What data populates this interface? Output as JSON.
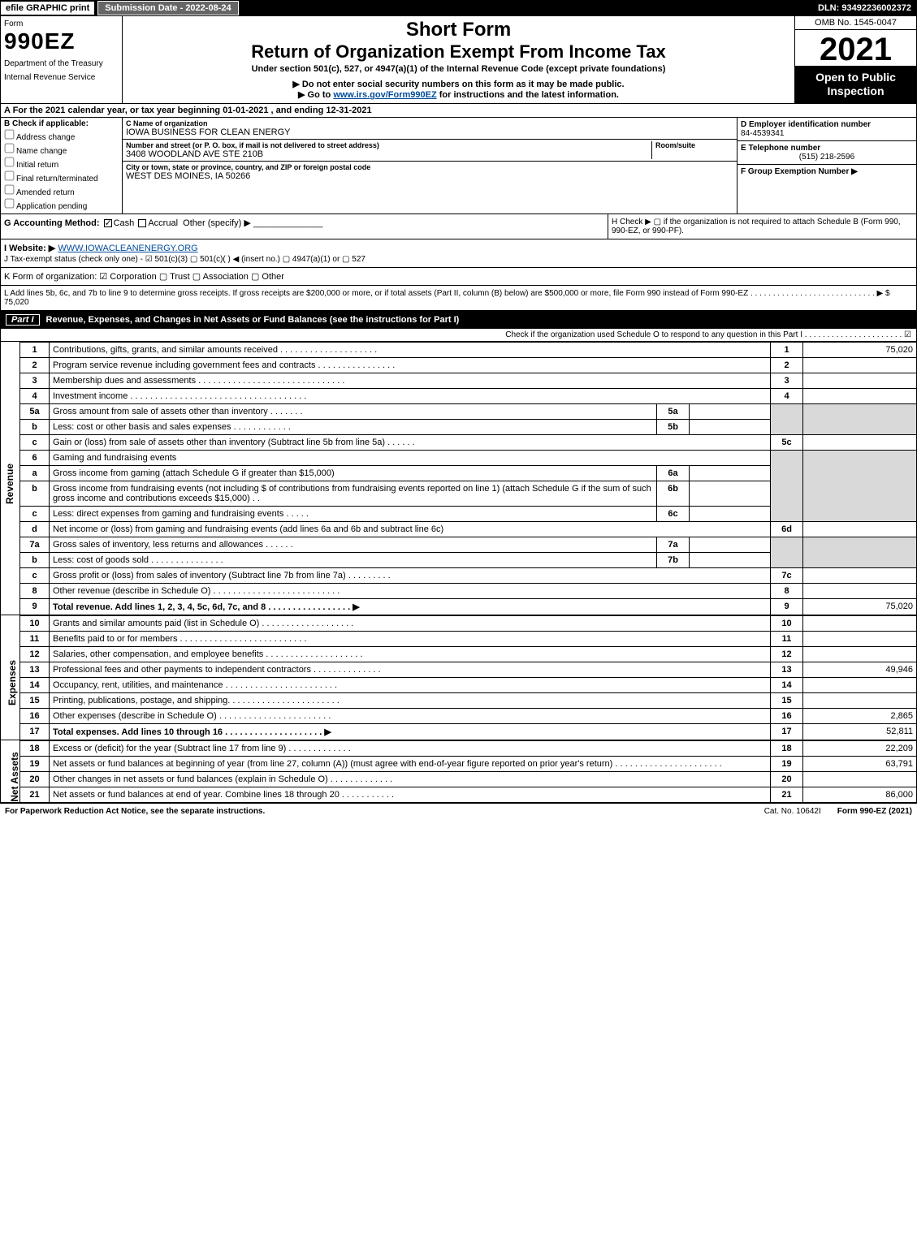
{
  "topbar": {
    "efile": "efile GRAPHIC print",
    "submission": "Submission Date - 2022-08-24",
    "dln": "DLN: 93492236002372"
  },
  "header": {
    "form_label": "Form",
    "form_number": "990EZ",
    "dept_line1": "Department of the Treasury",
    "dept_line2": "Internal Revenue Service",
    "short": "Short Form",
    "title": "Return of Organization Exempt From Income Tax",
    "subtitle": "Under section 501(c), 527, or 4947(a)(1) of the Internal Revenue Code (except private foundations)",
    "note_ssn": "▶ Do not enter social security numbers on this form as it may be made public.",
    "note_link_prefix": "▶ Go to ",
    "note_link": "www.irs.gov/Form990EZ",
    "note_link_suffix": " for instructions and the latest information.",
    "omb": "OMB No. 1545-0047",
    "year": "2021",
    "open": "Open to Public Inspection"
  },
  "section_a": "A  For the 2021 calendar year, or tax year beginning 01-01-2021 , and ending 12-31-2021",
  "section_b": {
    "label": "B  Check if applicable:",
    "opts": [
      "Address change",
      "Name change",
      "Initial return",
      "Final return/terminated",
      "Amended return",
      "Application pending"
    ]
  },
  "section_c": {
    "name_label": "C Name of organization",
    "name": "IOWA BUSINESS FOR CLEAN ENERGY",
    "street_label": "Number and street (or P. O. box, if mail is not delivered to street address)",
    "room_label": "Room/suite",
    "street": "3408 WOODLAND AVE STE 210B",
    "city_label": "City or town, state or province, country, and ZIP or foreign postal code",
    "city": "WEST DES MOINES, IA  50266"
  },
  "section_d": {
    "ein_label": "D Employer identification number",
    "ein": "84-4539341",
    "phone_label": "E Telephone number",
    "phone": "(515) 218-2596",
    "group_label": "F Group Exemption Number  ▶"
  },
  "section_g": "G Accounting Method:",
  "section_g_cash": "Cash",
  "section_g_accrual": "Accrual",
  "section_g_other": "Other (specify) ▶",
  "section_h": "H  Check ▶  ▢  if the organization is not required to attach Schedule B (Form 990, 990-EZ, or 990-PF).",
  "section_i_label": "I Website: ▶",
  "section_i_value": "WWW.IOWACLEANENERGY.ORG",
  "section_j": "J Tax-exempt status (check only one) -  ☑ 501(c)(3)  ▢ 501(c)(  )  ◀ (insert no.)  ▢ 4947(a)(1) or  ▢ 527",
  "section_k": "K Form of organization:   ☑ Corporation   ▢ Trust   ▢ Association   ▢ Other",
  "section_l": "L Add lines 5b, 6c, and 7b to line 9 to determine gross receipts. If gross receipts are $200,000 or more, or if total assets (Part II, column (B) below) are $500,000 or more, file Form 990 instead of Form 990-EZ .  .  .  .  .  .  .  .  .  .  .  .  .  .  .  .  .  .  .  .  .  .  .  .  .  .  .  .  ▶ $ 75,020",
  "part1": {
    "label": "Part I",
    "title": "Revenue, Expenses, and Changes in Net Assets or Fund Balances (see the instructions for Part I)",
    "check_o": "Check if the organization used Schedule O to respond to any question in this Part I .  .  .  .  .  .  .  .  .  .  .  .  .  .  .  .  .  .  .  .  .  .  ☑"
  },
  "side_labels": {
    "revenue": "Revenue",
    "expenses": "Expenses",
    "netassets": "Net Assets"
  },
  "lines": {
    "l1": {
      "num": "1",
      "desc": "Contributions, gifts, grants, and similar amounts received .  .  .  .  .  .  .  .  .  .  .  .  .  .  .  .  .  .  .  .",
      "col": "1",
      "amt": "75,020"
    },
    "l2": {
      "num": "2",
      "desc": "Program service revenue including government fees and contracts .  .  .  .  .  .  .  .  .  .  .  .  .  .  .  .",
      "col": "2",
      "amt": ""
    },
    "l3": {
      "num": "3",
      "desc": "Membership dues and assessments .  .  .  .  .  .  .  .  .  .  .  .  .  .  .  .  .  .  .  .  .  .  .  .  .  .  .  .  .  .",
      "col": "3",
      "amt": ""
    },
    "l4": {
      "num": "4",
      "desc": "Investment income .  .  .  .  .  .  .  .  .  .  .  .  .  .  .  .  .  .  .  .  .  .  .  .  .  .  .  .  .  .  .  .  .  .  .  .",
      "col": "4",
      "amt": ""
    },
    "l5a": {
      "num": "5a",
      "desc": "Gross amount from sale of assets other than inventory .  .  .  .  .  .  .",
      "sub": "5a"
    },
    "l5b": {
      "num": "b",
      "desc": "Less: cost or other basis and sales expenses .  .  .  .  .  .  .  .  .  .  .  .",
      "sub": "5b"
    },
    "l5c": {
      "num": "c",
      "desc": "Gain or (loss) from sale of assets other than inventory (Subtract line 5b from line 5a) .  .  .  .  .  .",
      "col": "5c",
      "amt": ""
    },
    "l6": {
      "num": "6",
      "desc": "Gaming and fundraising events"
    },
    "l6a": {
      "num": "a",
      "desc": "Gross income from gaming (attach Schedule G if greater than $15,000)",
      "sub": "6a"
    },
    "l6b": {
      "num": "b",
      "desc": "Gross income from fundraising events (not including $                    of contributions from fundraising events reported on line 1) (attach Schedule G if the sum of such gross income and contributions exceeds $15,000)   .  .",
      "sub": "6b"
    },
    "l6c": {
      "num": "c",
      "desc": "Less: direct expenses from gaming and fundraising events   .  .  .  .  .",
      "sub": "6c"
    },
    "l6d": {
      "num": "d",
      "desc": "Net income or (loss) from gaming and fundraising events (add lines 6a and 6b and subtract line 6c)",
      "col": "6d",
      "amt": ""
    },
    "l7a": {
      "num": "7a",
      "desc": "Gross sales of inventory, less returns and allowances .  .  .  .  .  .",
      "sub": "7a"
    },
    "l7b": {
      "num": "b",
      "desc": "Less: cost of goods sold       .  .  .  .  .  .  .  .  .  .  .  .  .  .  .",
      "sub": "7b"
    },
    "l7c": {
      "num": "c",
      "desc": "Gross profit or (loss) from sales of inventory (Subtract line 7b from line 7a) .  .  .  .  .  .  .  .  .",
      "col": "7c",
      "amt": ""
    },
    "l8": {
      "num": "8",
      "desc": "Other revenue (describe in Schedule O) .  .  .  .  .  .  .  .  .  .  .  .  .  .  .  .  .  .  .  .  .  .  .  .  .  .",
      "col": "8",
      "amt": ""
    },
    "l9": {
      "num": "9",
      "desc": "Total revenue. Add lines 1, 2, 3, 4, 5c, 6d, 7c, and 8  .  .  .  .  .  .  .  .  .  .  .  .  .  .  .  .  .  ▶",
      "col": "9",
      "amt": "75,020"
    },
    "l10": {
      "num": "10",
      "desc": "Grants and similar amounts paid (list in Schedule O) .  .  .  .  .  .  .  .  .  .  .  .  .  .  .  .  .  .  .",
      "col": "10",
      "amt": ""
    },
    "l11": {
      "num": "11",
      "desc": "Benefits paid to or for members     .  .  .  .  .  .  .  .  .  .  .  .  .  .  .  .  .  .  .  .  .  .  .  .  .  .",
      "col": "11",
      "amt": ""
    },
    "l12": {
      "num": "12",
      "desc": "Salaries, other compensation, and employee benefits .  .  .  .  .  .  .  .  .  .  .  .  .  .  .  .  .  .  .  .",
      "col": "12",
      "amt": ""
    },
    "l13": {
      "num": "13",
      "desc": "Professional fees and other payments to independent contractors .  .  .  .  .  .  .  .  .  .  .  .  .  .",
      "col": "13",
      "amt": "49,946"
    },
    "l14": {
      "num": "14",
      "desc": "Occupancy, rent, utilities, and maintenance .  .  .  .  .  .  .  .  .  .  .  .  .  .  .  .  .  .  .  .  .  .  .",
      "col": "14",
      "amt": ""
    },
    "l15": {
      "num": "15",
      "desc": "Printing, publications, postage, and shipping.  .  .  .  .  .  .  .  .  .  .  .  .  .  .  .  .  .  .  .  .  .  .",
      "col": "15",
      "amt": ""
    },
    "l16": {
      "num": "16",
      "desc": "Other expenses (describe in Schedule O)    .  .  .  .  .  .  .  .  .  .  .  .  .  .  .  .  .  .  .  .  .  .  .",
      "col": "16",
      "amt": "2,865"
    },
    "l17": {
      "num": "17",
      "desc": "Total expenses. Add lines 10 through 16     .  .  .  .  .  .  .  .  .  .  .  .  .  .  .  .  .  .  .  .  ▶",
      "col": "17",
      "amt": "52,811"
    },
    "l18": {
      "num": "18",
      "desc": "Excess or (deficit) for the year (Subtract line 17 from line 9)      .  .  .  .  .  .  .  .  .  .  .  .  .",
      "col": "18",
      "amt": "22,209"
    },
    "l19": {
      "num": "19",
      "desc": "Net assets or fund balances at beginning of year (from line 27, column (A)) (must agree with end-of-year figure reported on prior year's return) .  .  .  .  .  .  .  .  .  .  .  .  .  .  .  .  .  .  .  .  .  .",
      "col": "19",
      "amt": "63,791"
    },
    "l20": {
      "num": "20",
      "desc": "Other changes in net assets or fund balances (explain in Schedule O) .  .  .  .  .  .  .  .  .  .  .  .  .",
      "col": "20",
      "amt": ""
    },
    "l21": {
      "num": "21",
      "desc": "Net assets or fund balances at end of year. Combine lines 18 through 20 .  .  .  .  .  .  .  .  .  .  .",
      "col": "21",
      "amt": "86,000"
    }
  },
  "footer": {
    "left": "For Paperwork Reduction Act Notice, see the separate instructions.",
    "mid": "Cat. No. 10642I",
    "right": "Form 990-EZ (2021)"
  }
}
